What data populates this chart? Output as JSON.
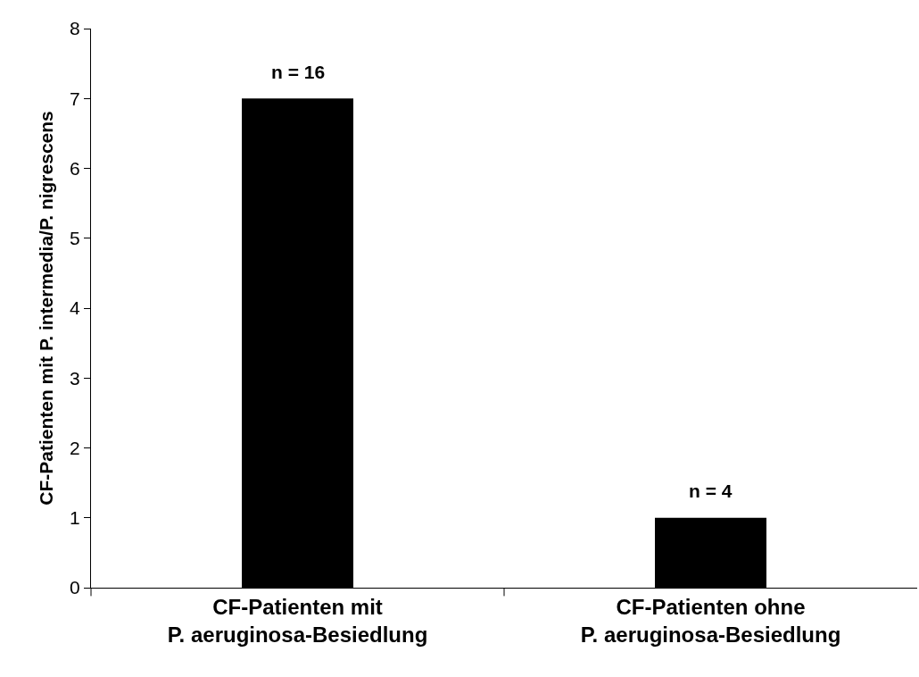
{
  "chart_data": {
    "type": "bar",
    "ylabel": "CF-Patienten mit P. intermedia/P. nigrescens",
    "categories": [
      "CF-Patienten mit\nP. aeruginosa-Besiedlung",
      "CF-Patienten ohne\nP. aeruginosa-Besiedlung"
    ],
    "values": [
      7,
      1
    ],
    "color": "#000000",
    "ylim": [
      0,
      8
    ],
    "yticks": [
      0,
      1,
      2,
      3,
      4,
      5,
      6,
      7,
      8
    ],
    "grid": false,
    "annotations": [
      {
        "text": "n = 16",
        "x": "CF-Patienten mit\nP. aeruginosa-Besiedlung",
        "y": 7
      },
      {
        "text": "n = 4",
        "x": "CF-Patienten ohne\nP. aeruginosa-Besiedlung",
        "y": 1
      }
    ]
  }
}
